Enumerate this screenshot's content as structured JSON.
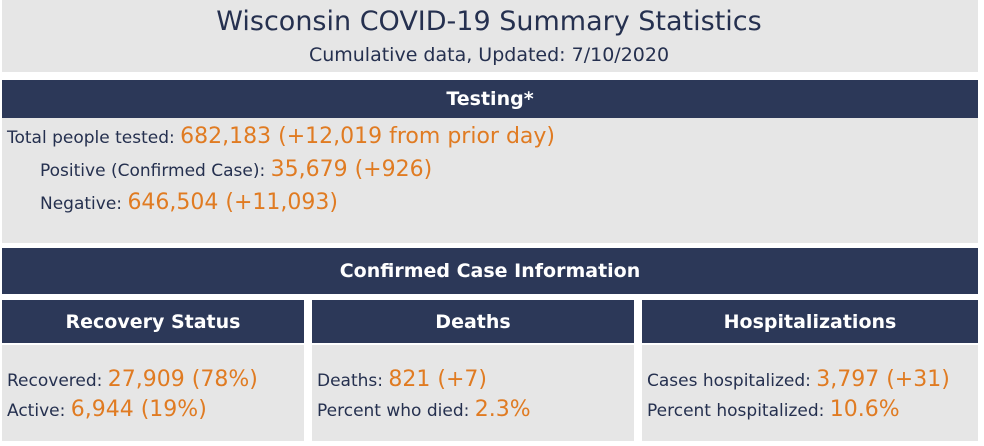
{
  "header": {
    "title": "Wisconsin COVID-19 Summary Statistics",
    "subtitle": "Cumulative data, Updated: 7/10/2020"
  },
  "testing": {
    "title": "Testing*",
    "rows": [
      {
        "label": "Total people tested:",
        "value": "682,183 (+12,019 from prior day)"
      },
      {
        "label": "Positive (Confirmed Case):",
        "value": "35,679 (+926)"
      },
      {
        "label": "Negative:",
        "value": "646,504 (+11,093)"
      }
    ]
  },
  "cases": {
    "title": "Confirmed Case Information",
    "panels": [
      {
        "title": "Recovery Status",
        "rows": [
          {
            "label": "Recovered:",
            "value": "27,909 (78%)"
          },
          {
            "label": "Active:",
            "value": "6,944 (19%)"
          }
        ]
      },
      {
        "title": "Deaths",
        "rows": [
          {
            "label": "Deaths:",
            "value": "821 (+7)"
          },
          {
            "label": "Percent who died:",
            "value": "2.3%"
          }
        ]
      },
      {
        "title": "Hospitalizations",
        "rows": [
          {
            "label": "Cases hospitalized:",
            "value": "3,797 (+31)"
          },
          {
            "label": "Percent hospitalized:",
            "value": "10.6%"
          }
        ]
      }
    ]
  }
}
